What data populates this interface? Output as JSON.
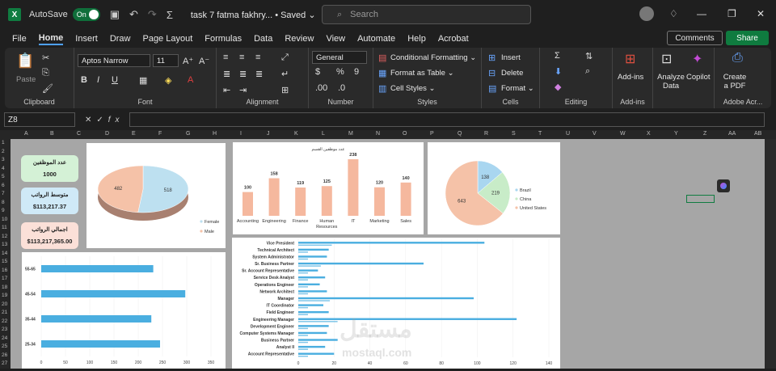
{
  "titlebar": {
    "app_icon": "X",
    "autosave_label": "AutoSave",
    "autosave_state": "On",
    "doc_title": "task 7 fatma fakhry... • Saved ⌄",
    "search_placeholder": "Search"
  },
  "menu": [
    "File",
    "Home",
    "Insert",
    "Draw",
    "Page Layout",
    "Formulas",
    "Data",
    "Review",
    "View",
    "Automate",
    "Help",
    "Acrobat"
  ],
  "comments_label": "Comments",
  "share_label": "Share",
  "ribbon": {
    "clipboard": {
      "paste": "Paste",
      "label": "Clipboard"
    },
    "font": {
      "name": "Aptos Narrow",
      "size": "11",
      "label": "Font"
    },
    "alignment": {
      "label": "Alignment"
    },
    "number": {
      "format": "General",
      "label": "Number",
      "currency": "$",
      "percent": "%",
      "comma": "9"
    },
    "styles": {
      "cond": "Conditional Formatting ⌄",
      "table": "Format as Table ⌄",
      "cell": "Cell Styles ⌄",
      "label": "Styles"
    },
    "cells": {
      "insert": "Insert",
      "delete": "Delete",
      "format": "Format ⌄",
      "label": "Cells"
    },
    "editing": {
      "label": "Editing"
    },
    "addins": {
      "btn": "Add-ins",
      "label": "Add-ins"
    },
    "analyze": "Analyze Data",
    "copilot": "Copilot",
    "acrobat": {
      "btn": "Create a PDF",
      "label": "Adobe Acr..."
    }
  },
  "namebox": "Z8",
  "fx": "fx",
  "columns": [
    "A",
    "B",
    "C",
    "D",
    "E",
    "F",
    "G",
    "H",
    "I",
    "J",
    "K",
    "L",
    "M",
    "N",
    "O",
    "P",
    "Q",
    "R",
    "S",
    "T",
    "U",
    "V",
    "W",
    "X",
    "Y",
    "Z",
    "AA",
    "AB"
  ],
  "rows": [
    "1",
    "2",
    "3",
    "4",
    "5",
    "6",
    "7",
    "8",
    "9",
    "10",
    "11",
    "12",
    "13",
    "14",
    "15",
    "16",
    "17",
    "18",
    "19",
    "20",
    "21",
    "22",
    "23",
    "24",
    "25",
    "26",
    "27"
  ],
  "kpis": [
    {
      "title": "عدد الموظفين",
      "value": "1000",
      "color": "#d4f1d6"
    },
    {
      "title": "متوسط الرواتب",
      "value": "$113,217.37",
      "color": "#cfe9f7"
    },
    {
      "title": "اجمالي الرواتب",
      "value": "$113,217,365.00",
      "color": "#fbe0d8"
    }
  ],
  "watermark": "مستقل",
  "watermark_sub": "mostaql.com",
  "chart_data": [
    {
      "type": "pie",
      "name": "gender",
      "slices": [
        {
          "label": "Female",
          "value": 518,
          "color": "#bde0f0"
        },
        {
          "label": "Male",
          "value": 482,
          "color": "#f5c2a8"
        }
      ]
    },
    {
      "type": "bar",
      "title": "عدد موظفين القسم",
      "categories": [
        "Accounting",
        "Engineering",
        "Finance",
        "Human Resources",
        "IT",
        "Marketing",
        "Sales"
      ],
      "values": [
        100,
        158,
        119,
        125,
        238,
        120,
        140
      ],
      "color": "#f5b89e"
    },
    {
      "type": "pie",
      "name": "country",
      "slices": [
        {
          "label": "Brazil",
          "value": 138,
          "color": "#a9d6f0"
        },
        {
          "label": "China",
          "value": 219,
          "color": "#c8ecc8"
        },
        {
          "label": "United States",
          "value": 643,
          "color": "#f5c2a8"
        }
      ]
    },
    {
      "type": "bar",
      "orientation": "horizontal",
      "categories": [
        "25-34",
        "35-44",
        "45-54",
        "55-65"
      ],
      "values": [
        245,
        227,
        297,
        231
      ],
      "xticks": [
        0,
        50,
        100,
        150,
        200,
        250,
        300,
        350
      ],
      "color": "#4aaee0"
    },
    {
      "type": "bar",
      "orientation": "horizontal",
      "categories": [
        "Vice President",
        "Technical Architect",
        "System Administrator",
        "Sr. Business Partner",
        "Sr. Account Representative",
        "Service Desk Analyst",
        "Operations Engineer",
        "Network Architect",
        "Manager",
        "IT Coordinator",
        "Field Engineer",
        "Engineering Manager",
        "Development Engineer",
        "Computer Systems Manager",
        "Business Partner",
        "Analyst II",
        "Account Representative"
      ],
      "values": [
        104,
        17,
        16,
        70,
        11,
        15,
        12,
        16,
        98,
        14,
        17,
        122,
        17,
        16,
        22,
        15,
        20
      ],
      "xticks": [
        0,
        20,
        40,
        60,
        80,
        100,
        120,
        140
      ],
      "color": "#4aaee0"
    }
  ]
}
